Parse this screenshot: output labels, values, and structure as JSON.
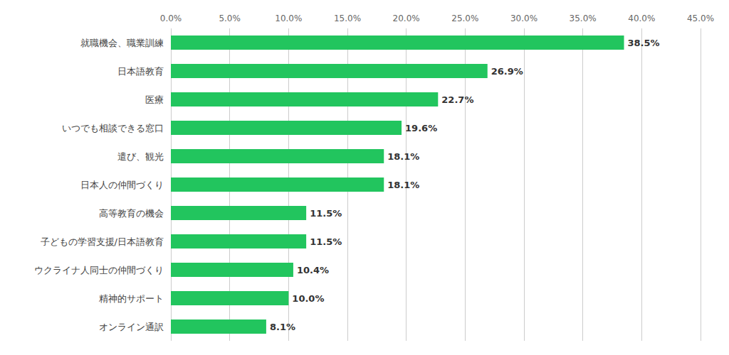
{
  "chart_data": {
    "type": "bar",
    "orientation": "horizontal",
    "categories": [
      "就職機会、職業訓練",
      "日本語教育",
      "医療",
      "いつでも相談できる窓口",
      "遣び、観光",
      "日本人の仲間づくり",
      "高等教育の機会",
      "子どもの学習支援/日本語教育",
      "ウクライナ人同士の仲間づくり",
      "精神的サポート",
      "オンライン通訳"
    ],
    "values": [
      38.5,
      26.9,
      22.7,
      19.6,
      18.1,
      18.1,
      11.5,
      11.5,
      10.4,
      10.0,
      8.1
    ],
    "value_labels": [
      "38.5%",
      "26.9%",
      "22.7%",
      "19.6%",
      "18.1%",
      "18.1%",
      "11.5%",
      "11.5%",
      "10.4%",
      "10.0%",
      "8.1%"
    ],
    "data_labels": true,
    "color": "#22c55e",
    "xlim": [
      0,
      45.0
    ],
    "xticks": [
      {
        "value": 0.0,
        "label": "0.0%"
      },
      {
        "value": 5.0,
        "label": "5.0%"
      },
      {
        "value": 10.0,
        "label": "10.0%"
      },
      {
        "value": 15.0,
        "label": "15.0%"
      },
      {
        "value": 20.0,
        "label": "20.0%"
      },
      {
        "value": 25.0,
        "label": "25.0%"
      },
      {
        "value": 30.0,
        "label": "30.0%"
      },
      {
        "value": 35.0,
        "label": "35.0%"
      },
      {
        "value": 40.0,
        "label": "40.0%"
      },
      {
        "value": 45.0,
        "label": "45.0%"
      }
    ],
    "grid": true
  }
}
